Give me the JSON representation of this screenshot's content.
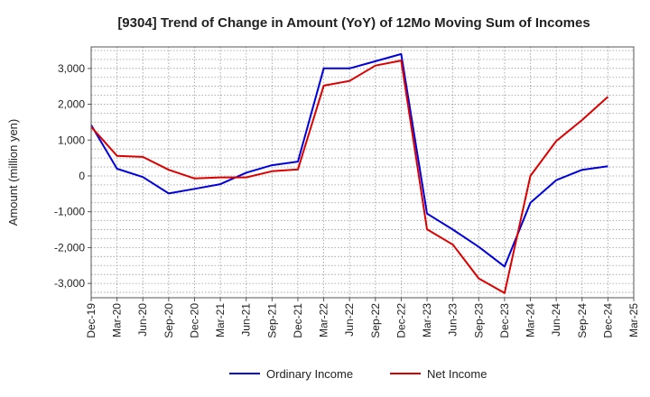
{
  "chart_data": {
    "type": "line",
    "title": "[9304]  Trend of Change in Amount (YoY) of 12Mo Moving Sum of Incomes",
    "xlabel": "",
    "ylabel": "Amount (million yen)",
    "x": [
      "Dec-19",
      "Mar-20",
      "Jun-20",
      "Sep-20",
      "Dec-20",
      "Mar-21",
      "Jun-21",
      "Sep-21",
      "Dec-21",
      "Mar-22",
      "Jun-22",
      "Sep-22",
      "Dec-22",
      "Mar-23",
      "Jun-23",
      "Sep-23",
      "Dec-23",
      "Mar-24",
      "Jun-24",
      "Sep-24",
      "Dec-24",
      "Mar-25"
    ],
    "yticks": [
      -3000,
      -2000,
      -1000,
      0,
      1000,
      2000,
      3000
    ],
    "ytick_labels": [
      "-3,000",
      "-2,000",
      "-1,000",
      "0",
      "1,000",
      "2,000",
      "3,000"
    ],
    "ylim": [
      -3400,
      3600
    ],
    "grid": true,
    "legend_position": "bottom",
    "series": [
      {
        "name": "Ordinary Income",
        "color": "#0000dd",
        "values": [
          1420,
          200,
          -30,
          -490,
          -360,
          -230,
          90,
          300,
          400,
          3000,
          3000,
          3200,
          3400,
          -1050,
          -1500,
          -1980,
          -2530,
          -750,
          -120,
          170,
          270,
          null
        ]
      },
      {
        "name": "Net Income",
        "color": "#dd0000",
        "values": [
          1370,
          560,
          530,
          170,
          -70,
          -40,
          -40,
          130,
          180,
          2520,
          2650,
          3080,
          3220,
          -1490,
          -1920,
          -2860,
          -3270,
          0,
          970,
          1560,
          2210,
          null
        ]
      }
    ]
  }
}
